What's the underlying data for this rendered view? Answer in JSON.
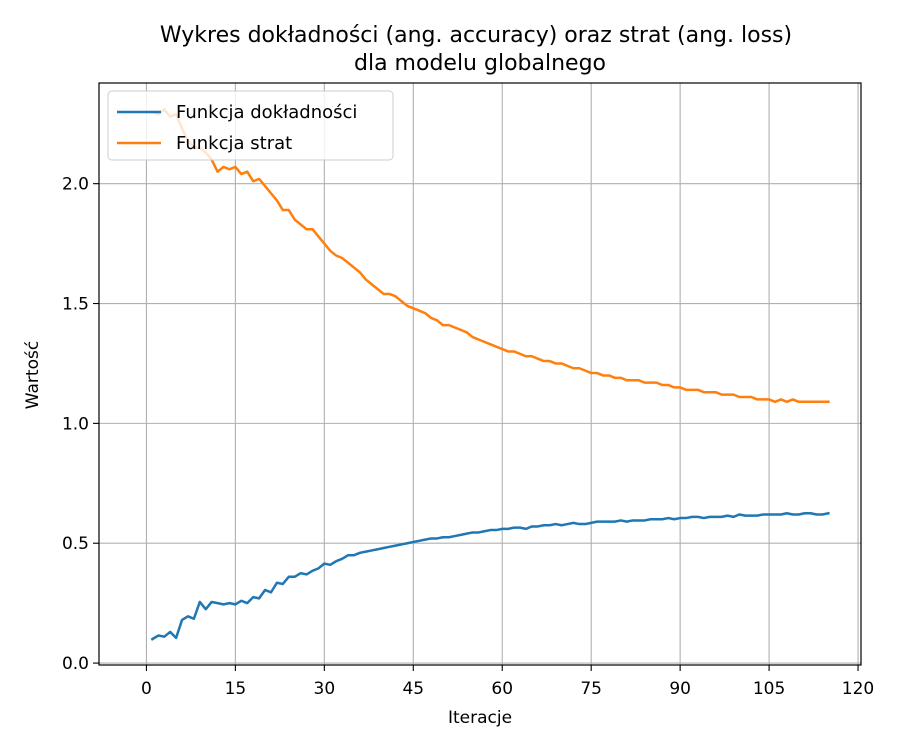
{
  "chart_data": {
    "type": "line",
    "title_line1": "Wykres dokładności (ang. accuracy) oraz strat (ang. loss)",
    "title_line2": "dla modelu globalnego",
    "xlabel": "Iteracje",
    "ylabel": "Wartość",
    "xlim": [
      -8,
      120.5
    ],
    "ylim": [
      -0.008,
      2.42
    ],
    "xticks": [
      0,
      15,
      30,
      45,
      60,
      75,
      90,
      105,
      120
    ],
    "yticks": [
      0.0,
      0.5,
      1.0,
      1.5,
      2.0
    ],
    "xtick_labels": [
      "0",
      "15",
      "30",
      "45",
      "60",
      "75",
      "90",
      "105",
      "120"
    ],
    "ytick_labels": [
      "0.0",
      "0.5",
      "1.0",
      "1.5",
      "2.0"
    ],
    "grid": true,
    "legend_position": "top-left",
    "x_start": 1,
    "x_step": 1,
    "series": [
      {
        "name": "Funkcja dokładności",
        "color": "#1f77b4",
        "values": [
          0.1,
          0.115,
          0.11,
          0.13,
          0.105,
          0.18,
          0.195,
          0.185,
          0.255,
          0.225,
          0.255,
          0.25,
          0.245,
          0.25,
          0.245,
          0.26,
          0.25,
          0.275,
          0.27,
          0.305,
          0.295,
          0.335,
          0.33,
          0.36,
          0.36,
          0.375,
          0.37,
          0.385,
          0.395,
          0.415,
          0.41,
          0.425,
          0.435,
          0.45,
          0.45,
          0.46,
          0.465,
          0.47,
          0.475,
          0.48,
          0.485,
          0.49,
          0.495,
          0.5,
          0.505,
          0.51,
          0.515,
          0.52,
          0.52,
          0.525,
          0.525,
          0.53,
          0.535,
          0.54,
          0.545,
          0.545,
          0.55,
          0.555,
          0.555,
          0.56,
          0.56,
          0.565,
          0.565,
          0.56,
          0.57,
          0.57,
          0.575,
          0.575,
          0.58,
          0.575,
          0.58,
          0.585,
          0.58,
          0.58,
          0.585,
          0.59,
          0.59,
          0.59,
          0.59,
          0.595,
          0.59,
          0.595,
          0.595,
          0.595,
          0.6,
          0.6,
          0.6,
          0.605,
          0.6,
          0.605,
          0.605,
          0.61,
          0.61,
          0.605,
          0.61,
          0.61,
          0.61,
          0.615,
          0.61,
          0.62,
          0.615,
          0.615,
          0.615,
          0.62,
          0.62,
          0.62,
          0.62,
          0.625,
          0.62,
          0.62,
          0.625,
          0.625,
          0.62,
          0.62,
          0.625
        ]
      },
      {
        "name": "Funkcja strat",
        "color": "#ff7f0e",
        "values": [
          2.3,
          2.29,
          2.31,
          2.28,
          2.29,
          2.23,
          2.18,
          2.15,
          2.15,
          2.13,
          2.1,
          2.05,
          2.07,
          2.06,
          2.07,
          2.04,
          2.05,
          2.01,
          2.02,
          1.99,
          1.96,
          1.93,
          1.89,
          1.89,
          1.85,
          1.83,
          1.81,
          1.81,
          1.78,
          1.75,
          1.72,
          1.7,
          1.69,
          1.67,
          1.65,
          1.63,
          1.6,
          1.58,
          1.56,
          1.54,
          1.54,
          1.53,
          1.51,
          1.49,
          1.48,
          1.47,
          1.46,
          1.44,
          1.43,
          1.41,
          1.41,
          1.4,
          1.39,
          1.38,
          1.36,
          1.35,
          1.34,
          1.33,
          1.32,
          1.31,
          1.3,
          1.3,
          1.29,
          1.28,
          1.28,
          1.27,
          1.26,
          1.26,
          1.25,
          1.25,
          1.24,
          1.23,
          1.23,
          1.22,
          1.21,
          1.21,
          1.2,
          1.2,
          1.19,
          1.19,
          1.18,
          1.18,
          1.18,
          1.17,
          1.17,
          1.17,
          1.16,
          1.16,
          1.15,
          1.15,
          1.14,
          1.14,
          1.14,
          1.13,
          1.13,
          1.13,
          1.12,
          1.12,
          1.12,
          1.11,
          1.11,
          1.11,
          1.1,
          1.1,
          1.1,
          1.09,
          1.1,
          1.09,
          1.1,
          1.09,
          1.09,
          1.09,
          1.09,
          1.09,
          1.09
        ]
      }
    ]
  }
}
